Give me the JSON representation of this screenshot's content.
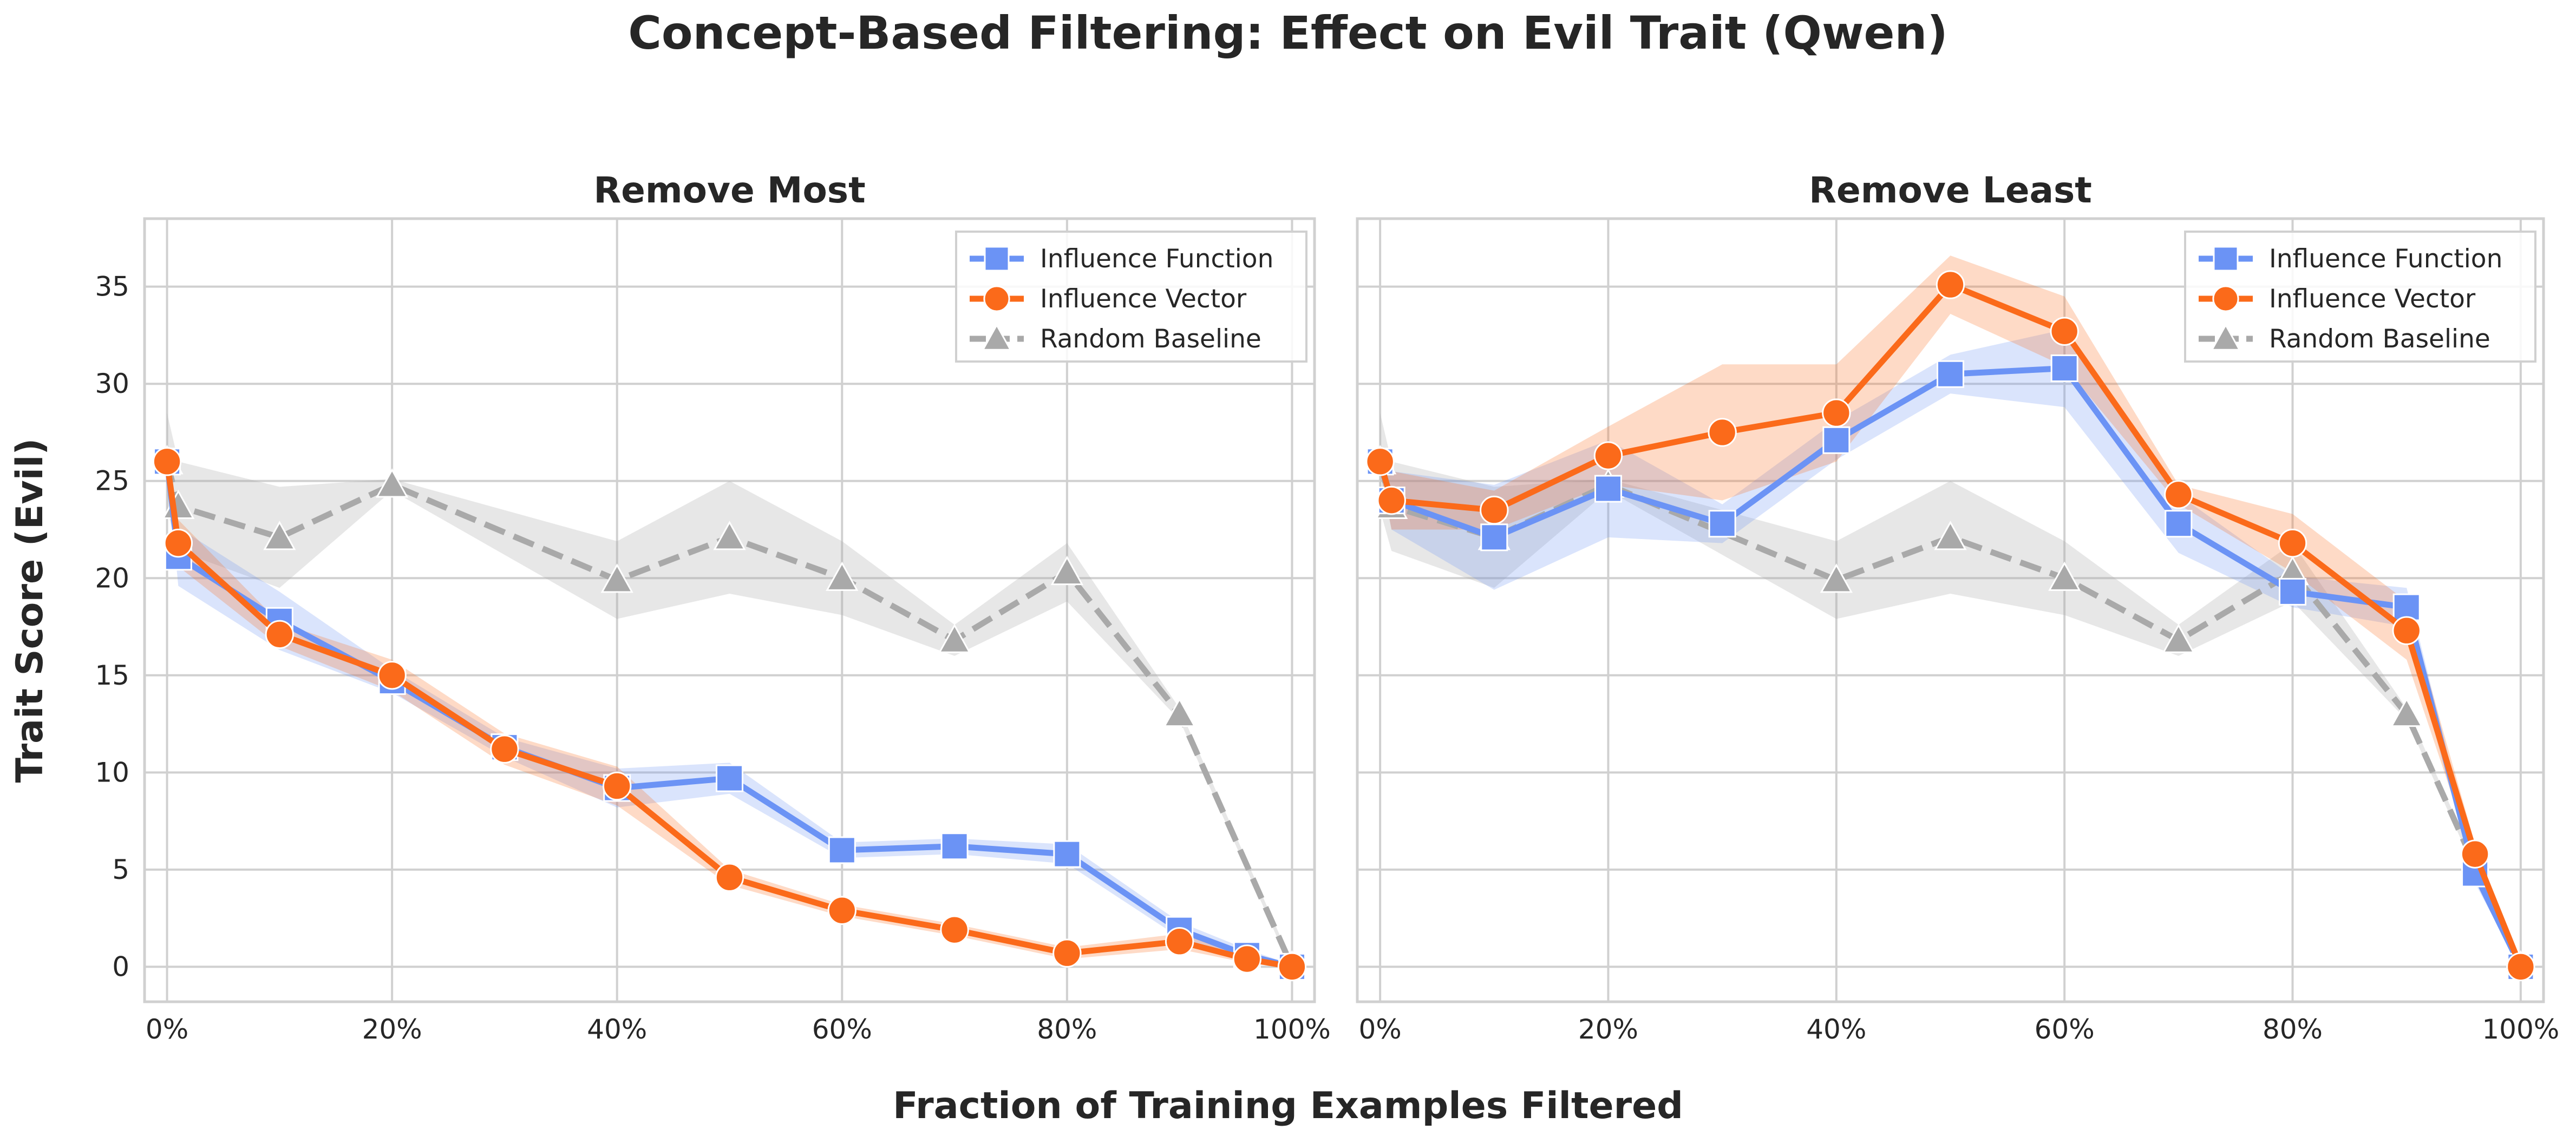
{
  "title": "Concept-Based Filtering: Effect on Evil Trait (Qwen)",
  "xlabel": "Fraction of Training Examples Filtered",
  "ylabel": "Trait Score (Evil)",
  "colors": {
    "influence_function": "#6b93f5",
    "influence_vector": "#fb6a1a",
    "random_baseline": "#a9a9a9"
  },
  "chart_data": [
    {
      "type": "line",
      "title": "Remove Most",
      "xlim": [
        -2,
        102
      ],
      "ylim": [
        -1.8,
        38.5
      ],
      "xticks": [
        0,
        20,
        40,
        60,
        80,
        100
      ],
      "xtick_labels": [
        "0%",
        "20%",
        "40%",
        "60%",
        "80%",
        "100%"
      ],
      "yticks": [
        0,
        5,
        10,
        15,
        20,
        25,
        30,
        35
      ],
      "ytick_labels": [
        "0",
        "5",
        "10",
        "15",
        "20",
        "25",
        "30",
        "35"
      ],
      "grid": true,
      "legend": "top-right",
      "series": [
        {
          "name": "Influence Function",
          "key": "influence_function",
          "marker": "square",
          "dash": false,
          "x": [
            0,
            1,
            10,
            20,
            30,
            40,
            50,
            60,
            70,
            80,
            90,
            96,
            100
          ],
          "y": [
            26,
            21.1,
            17.8,
            14.7,
            11.3,
            9.2,
            9.7,
            6.0,
            6.2,
            5.8,
            1.9,
            0.6,
            0
          ],
          "ci": [
            0.5,
            1.5,
            1.5,
            0.6,
            0.5,
            1.0,
            0.8,
            0.4,
            0.4,
            0.5,
            0.4,
            0.3,
            0.1
          ]
        },
        {
          "name": "Influence Vector",
          "key": "influence_vector",
          "marker": "circle",
          "dash": false,
          "x": [
            0,
            1,
            10,
            20,
            30,
            40,
            50,
            60,
            70,
            80,
            90,
            96,
            100
          ],
          "y": [
            26,
            21.8,
            17.1,
            15.0,
            11.2,
            9.3,
            4.6,
            2.9,
            1.9,
            0.7,
            1.3,
            0.4,
            0
          ],
          "ci": [
            0.5,
            1.2,
            0.6,
            0.8,
            0.8,
            1.0,
            0.4,
            0.3,
            0.3,
            0.3,
            0.4,
            0.2,
            0.1
          ]
        },
        {
          "name": "Random Baseline",
          "key": "random_baseline",
          "marker": "triangle",
          "dash": true,
          "x": [
            0,
            1,
            10,
            20,
            40,
            50,
            60,
            70,
            80,
            90,
            100
          ],
          "y": [
            26,
            23.7,
            22.1,
            24.8,
            19.9,
            22.1,
            20.0,
            16.8,
            20.3,
            13.0,
            0
          ],
          "ci": [
            2.5,
            2.3,
            2.6,
            0.3,
            2.0,
            2.9,
            1.9,
            0.8,
            1.5,
            0.3,
            0.2
          ]
        }
      ]
    },
    {
      "type": "line",
      "title": "Remove Least",
      "xlim": [
        -2,
        102
      ],
      "ylim": [
        -1.8,
        38.5
      ],
      "xticks": [
        0,
        20,
        40,
        60,
        80,
        100
      ],
      "xtick_labels": [
        "0%",
        "20%",
        "40%",
        "60%",
        "80%",
        "100%"
      ],
      "yticks": [
        0,
        5,
        10,
        15,
        20,
        25,
        30,
        35
      ],
      "grid": true,
      "legend": "top-right",
      "series": [
        {
          "name": "Influence Function",
          "key": "influence_function",
          "marker": "square",
          "dash": false,
          "x": [
            0,
            1,
            10,
            20,
            30,
            40,
            50,
            60,
            70,
            80,
            90,
            96,
            100
          ],
          "y": [
            26,
            24.0,
            22.1,
            24.6,
            22.8,
            27.1,
            30.5,
            30.8,
            22.8,
            19.3,
            18.5,
            4.8,
            0
          ],
          "ci": [
            0.5,
            1.5,
            2.7,
            2.5,
            1.0,
            1.0,
            1.0,
            2.0,
            1.5,
            0.8,
            1.0,
            0.5,
            0.1
          ]
        },
        {
          "name": "Influence Vector",
          "key": "influence_vector",
          "marker": "circle",
          "dash": false,
          "x": [
            0,
            1,
            10,
            20,
            30,
            40,
            50,
            60,
            70,
            80,
            90,
            96,
            100
          ],
          "y": [
            26,
            24.0,
            23.5,
            26.3,
            27.5,
            28.5,
            35.1,
            32.7,
            24.3,
            21.8,
            17.3,
            5.8,
            0
          ],
          "ci": [
            0.5,
            1.5,
            1.0,
            1.5,
            3.5,
            2.5,
            1.5,
            1.8,
            0.5,
            1.5,
            1.5,
            0.5,
            0.1
          ]
        },
        {
          "name": "Random Baseline",
          "key": "random_baseline",
          "marker": "triangle",
          "dash": true,
          "x": [
            0,
            1,
            10,
            20,
            40,
            50,
            60,
            70,
            80,
            90,
            100
          ],
          "y": [
            26,
            23.7,
            22.1,
            24.8,
            19.9,
            22.1,
            20.0,
            16.8,
            20.3,
            13.0,
            0
          ],
          "ci": [
            2.5,
            2.3,
            2.6,
            0.3,
            2.0,
            2.9,
            1.9,
            0.8,
            1.5,
            0.3,
            0.2
          ]
        }
      ]
    }
  ]
}
